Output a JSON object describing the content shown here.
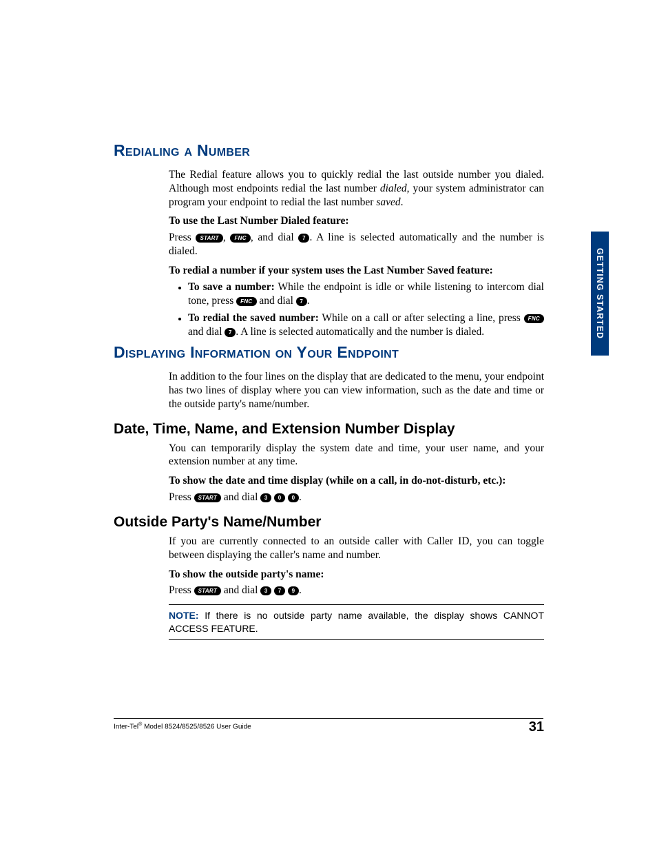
{
  "colors": {
    "heading_blue": "#003a7d",
    "tab_bg": "#003a7d",
    "text": "#000000",
    "pill_bg": "#000000",
    "pill_fg": "#ffffff",
    "background": "#ffffff"
  },
  "typography": {
    "body_family": "Times New Roman",
    "heading_family": "Arial",
    "h1_size_pt": 17,
    "h2_size_pt": 16,
    "body_size_pt": 12,
    "note_size_pt": 10.5,
    "footer_size_pt": 7.5,
    "page_num_size_pt": 15
  },
  "pills": {
    "start": "START",
    "fnc": "FNC",
    "n0": "0",
    "n3": "3",
    "n7": "7",
    "n9": "9"
  },
  "section1": {
    "title": "Redialing a Number",
    "p1a": "The Redial feature allows you to quickly redial the last outside number you dialed. Although most endpoints redial the last number ",
    "p1_dialed": "dialed",
    "p1b": ", your system administrator can program your endpoint to redial the last number ",
    "p1_saved": "saved",
    "p1c": ".",
    "use_label": "To use the Last Number Dialed feature:",
    "use_a": "Press ",
    "use_b": ", ",
    "use_c": ", and dial ",
    "use_d": ". A line is selected automatically and the number is dialed.",
    "redial_if_label": "To redial a number if your system uses the Last Number Saved feature:",
    "bul1_lead": "To save a number:",
    "bul1_a": " While the endpoint is idle or while listening to intercom dial tone, press ",
    "bul1_b": " and dial ",
    "bul1_c": ".",
    "bul2_lead": "To redial the saved number:",
    "bul2_a": " While on a call or after selecting a line, press ",
    "bul2_b": " and dial ",
    "bul2_c": ". A line is selected automatically and the number is dialed."
  },
  "section2": {
    "title": "Displaying Information on Your Endpoint",
    "p1": "In addition to the four lines on the display that are dedicated to the menu, your endpoint has two lines of display where you can view information, such as the date and time or the outside party's name/number."
  },
  "sub1": {
    "title": "Date, Time, Name, and Extension Number Display",
    "p1": "You can temporarily display the system date and time, your user name, and your extension number at any time.",
    "label": "To show the date and time display (while on a call, in do-not-disturb, etc.):",
    "a": "Press ",
    "b": " and dial ",
    "c": "."
  },
  "sub2": {
    "title": "Outside Party's Name/Number",
    "p1": "If you are currently connected to an outside caller with Caller ID, you can toggle between displaying the caller's name and number.",
    "label": "To show the outside party's name:",
    "a": "Press ",
    "b": " and dial ",
    "c": "."
  },
  "note": {
    "label": "NOTE:",
    "text": " If there is no outside party name available, the display shows CANNOT ACCESS FEATURE."
  },
  "side_tab": "GETTING STARTED",
  "footer": {
    "left_a": "Inter-Tel",
    "left_sup": "®",
    "left_b": " Model 8524/8525/8526 User Guide",
    "page": "31"
  }
}
